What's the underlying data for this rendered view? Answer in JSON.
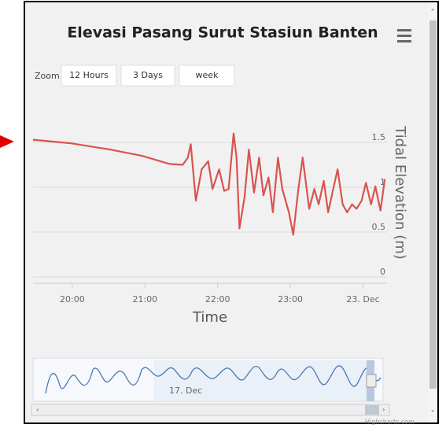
{
  "chart_data": {
    "type": "line",
    "title": "Elevasi Pasang Surut Stasiun Banten",
    "zoom": {
      "label": "Zoom",
      "buttons": [
        "12 Hours",
        "3 Days",
        "week"
      ]
    },
    "x_label": "Time",
    "y_label": "Tidal Elevation (m)",
    "xlim": [
      19.46,
      24.33
    ],
    "xticks": [
      {
        "value": 20,
        "label": "20:00"
      },
      {
        "value": 21,
        "label": "21:00"
      },
      {
        "value": 22,
        "label": "22:00"
      },
      {
        "value": 23,
        "label": "23:00"
      },
      {
        "value": 24,
        "label": "23. Dec"
      }
    ],
    "ylim": [
      0,
      2
    ],
    "yticks": [
      0,
      0.5,
      1,
      1.5
    ],
    "grid": true,
    "series": [
      {
        "color": "#d9534f",
        "x": [
          19.46,
          19.98,
          20.52,
          20.96,
          21.34,
          21.52,
          21.59,
          21.63,
          21.7,
          21.78,
          21.87,
          21.93,
          22.02,
          22.09,
          22.15,
          22.22,
          22.26,
          22.3,
          22.37,
          22.43,
          22.5,
          22.57,
          22.63,
          22.7,
          22.76,
          22.83,
          22.89,
          22.98,
          23.04,
          23.11,
          23.17,
          23.26,
          23.33,
          23.39,
          23.46,
          23.52,
          23.59,
          23.65,
          23.72,
          23.78,
          23.85,
          23.91,
          23.98,
          24.04,
          24.11,
          24.17,
          24.24,
          24.3
        ],
        "values": [
          1.53,
          1.49,
          1.42,
          1.35,
          1.26,
          1.25,
          1.33,
          1.48,
          0.85,
          1.2,
          1.29,
          0.98,
          1.2,
          0.96,
          0.98,
          1.6,
          1.33,
          0.54,
          0.89,
          1.42,
          0.94,
          1.33,
          0.91,
          1.11,
          0.72,
          1.33,
          0.98,
          0.72,
          0.47,
          0.98,
          1.33,
          0.76,
          0.98,
          0.81,
          1.07,
          0.72,
          0.98,
          1.2,
          0.81,
          0.72,
          0.81,
          0.76,
          0.85,
          1.05,
          0.81,
          1.01,
          0.74,
          1.09
        ]
      }
    ],
    "navigator_label": "17. Dec",
    "credits": "Highcharts.com"
  }
}
